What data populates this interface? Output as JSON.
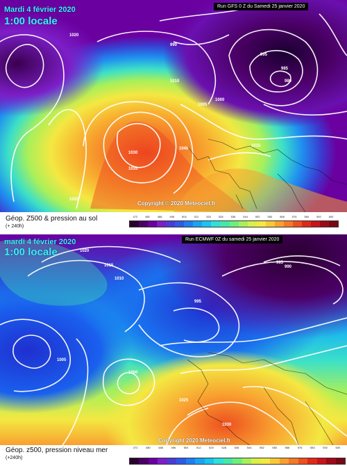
{
  "top": {
    "date": "Mardi 4 février 2020",
    "time": "1:00 locale",
    "run": "Run GFS 0 Z du Samedi 25 janvier 2020",
    "copyright": "Copyright © 2020 Meteociel.fr",
    "caption": "Géop. Z500 & pression au sol",
    "hours": "(+ 240h)",
    "labels": [
      "1020",
      "1025",
      "1030",
      "1035",
      "1010",
      "1005",
      "1000",
      "995",
      "990",
      "985",
      "980",
      "1040",
      "1015"
    ]
  },
  "bottom": {
    "date": "mardi 4 février 2020",
    "time": "1:00 locale",
    "run": "Run ECMWF 0Z du samedi 25 janvier 2020",
    "copyright": "Copyright 2020 Meteociel.fr",
    "caption": "Géop. z500, pression niveau mer",
    "hours": "(+240h)",
    "labels": [
      "1020",
      "1015",
      "1010",
      "1005",
      "1000",
      "995",
      "990",
      "985",
      "1025",
      "1030"
    ]
  },
  "scale_colors": [
    "#2a0030",
    "#4b0066",
    "#6a00a0",
    "#7d1ec8",
    "#4a3cd8",
    "#2f5ae6",
    "#1f7ff0",
    "#1aa3f5",
    "#19c4f0",
    "#2fe0d8",
    "#44e8a8",
    "#6cf07a",
    "#a8f05a",
    "#d8f048",
    "#f4e842",
    "#f8c838",
    "#f8a030",
    "#f47a28",
    "#ee5020",
    "#e02a18",
    "#c8141c",
    "#a00a18",
    "#780814"
  ],
  "scale_values": [
    "472",
    "480",
    "488",
    "496",
    "504",
    "512",
    "520",
    "528",
    "536",
    "544",
    "552",
    "560",
    "568",
    "576",
    "584",
    "592",
    "600"
  ]
}
